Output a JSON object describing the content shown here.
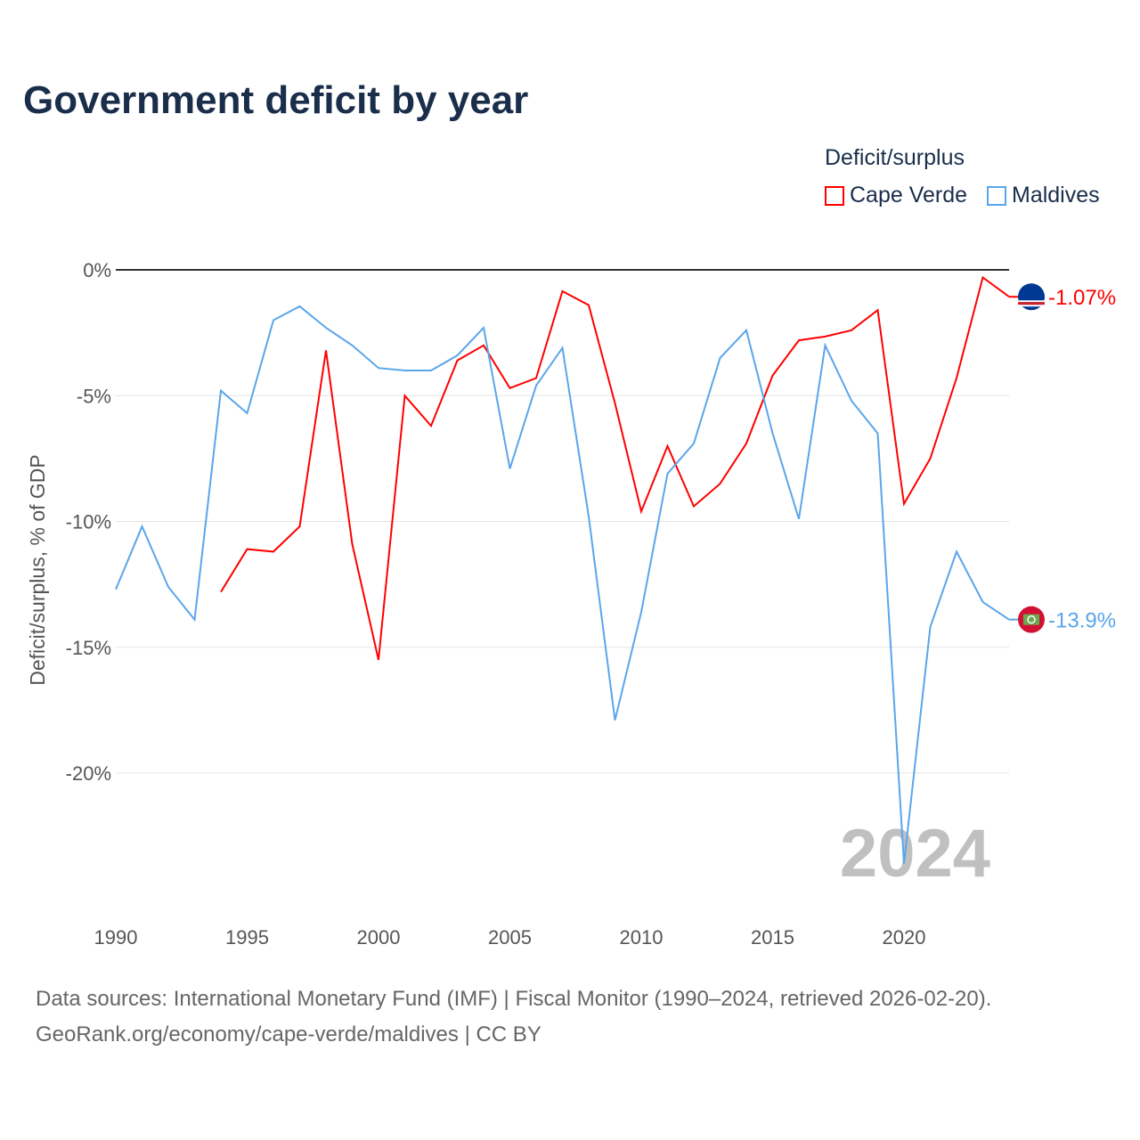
{
  "title": "Government deficit by year",
  "legend": {
    "title": "Deficit/surplus",
    "items": [
      {
        "name": "Cape Verde",
        "color": "#ff0000"
      },
      {
        "name": "Maldives",
        "color": "#5aa5eb"
      }
    ]
  },
  "footer": {
    "line1": "Data sources: International Monetary Fund (IMF) | Fiscal Monitor (1990–2024, retrieved 2026-02-20).",
    "line2": "GeoRank.org/economy/cape-verde/maldives | CC BY"
  },
  "chart_data": {
    "type": "line",
    "title": "Government deficit by year",
    "xlabel": "",
    "ylabel": "Deficit/surplus, % of GDP",
    "xlim": [
      1990,
      2024
    ],
    "ylim": [
      -24,
      0
    ],
    "x_ticks": [
      "1990",
      "1995",
      "2000",
      "2005",
      "2010",
      "2015",
      "2020"
    ],
    "y_ticks": [
      {
        "v": 0,
        "label": "0%"
      },
      {
        "v": -5,
        "label": "-5%"
      },
      {
        "v": -10,
        "label": "-10%"
      },
      {
        "v": -15,
        "label": "-15%"
      },
      {
        "v": -20,
        "label": "-20%"
      }
    ],
    "year_watermark": "2024",
    "series": [
      {
        "name": "Cape Verde",
        "color": "#ff0000",
        "end_label": "-1.07%",
        "x": [
          1994,
          1995,
          1996,
          1997,
          1998,
          1999,
          2000,
          2001,
          2002,
          2003,
          2004,
          2005,
          2006,
          2007,
          2008,
          2009,
          2010,
          2011,
          2012,
          2013,
          2014,
          2015,
          2016,
          2017,
          2018,
          2019,
          2020,
          2021,
          2022,
          2023,
          2024
        ],
        "values": [
          -12.8,
          -11.1,
          -11.2,
          -10.2,
          -3.2,
          -10.9,
          -15.5,
          -5.0,
          -6.2,
          -3.6,
          -3.0,
          -4.7,
          -4.3,
          -0.85,
          -1.4,
          -5.3,
          -9.6,
          -7.0,
          -9.4,
          -8.5,
          -6.9,
          -4.2,
          -2.8,
          -2.65,
          -2.4,
          -1.6,
          -9.3,
          -7.5,
          -4.3,
          -0.3,
          -1.07
        ]
      },
      {
        "name": "Maldives",
        "color": "#5aa5eb",
        "end_label": "-13.9%",
        "x": [
          1990,
          1991,
          1992,
          1993,
          1994,
          1995,
          1996,
          1997,
          1998,
          1999,
          2000,
          2001,
          2002,
          2003,
          2004,
          2005,
          2006,
          2007,
          2008,
          2009,
          2010,
          2011,
          2012,
          2013,
          2014,
          2015,
          2016,
          2017,
          2018,
          2019,
          2020,
          2021,
          2022,
          2023,
          2024
        ],
        "values": [
          -12.7,
          -10.2,
          -12.6,
          -13.9,
          -4.8,
          -5.7,
          -2.0,
          -1.45,
          -2.3,
          -3.0,
          -3.9,
          -4.0,
          -4.0,
          -3.4,
          -2.3,
          -7.9,
          -4.6,
          -3.1,
          -9.8,
          -17.9,
          -13.6,
          -8.1,
          -6.9,
          -3.5,
          -2.4,
          -6.5,
          -9.9,
          -3.0,
          -5.2,
          -6.5,
          -23.6,
          -14.2,
          -11.2,
          -13.2,
          -13.9
        ]
      }
    ]
  }
}
